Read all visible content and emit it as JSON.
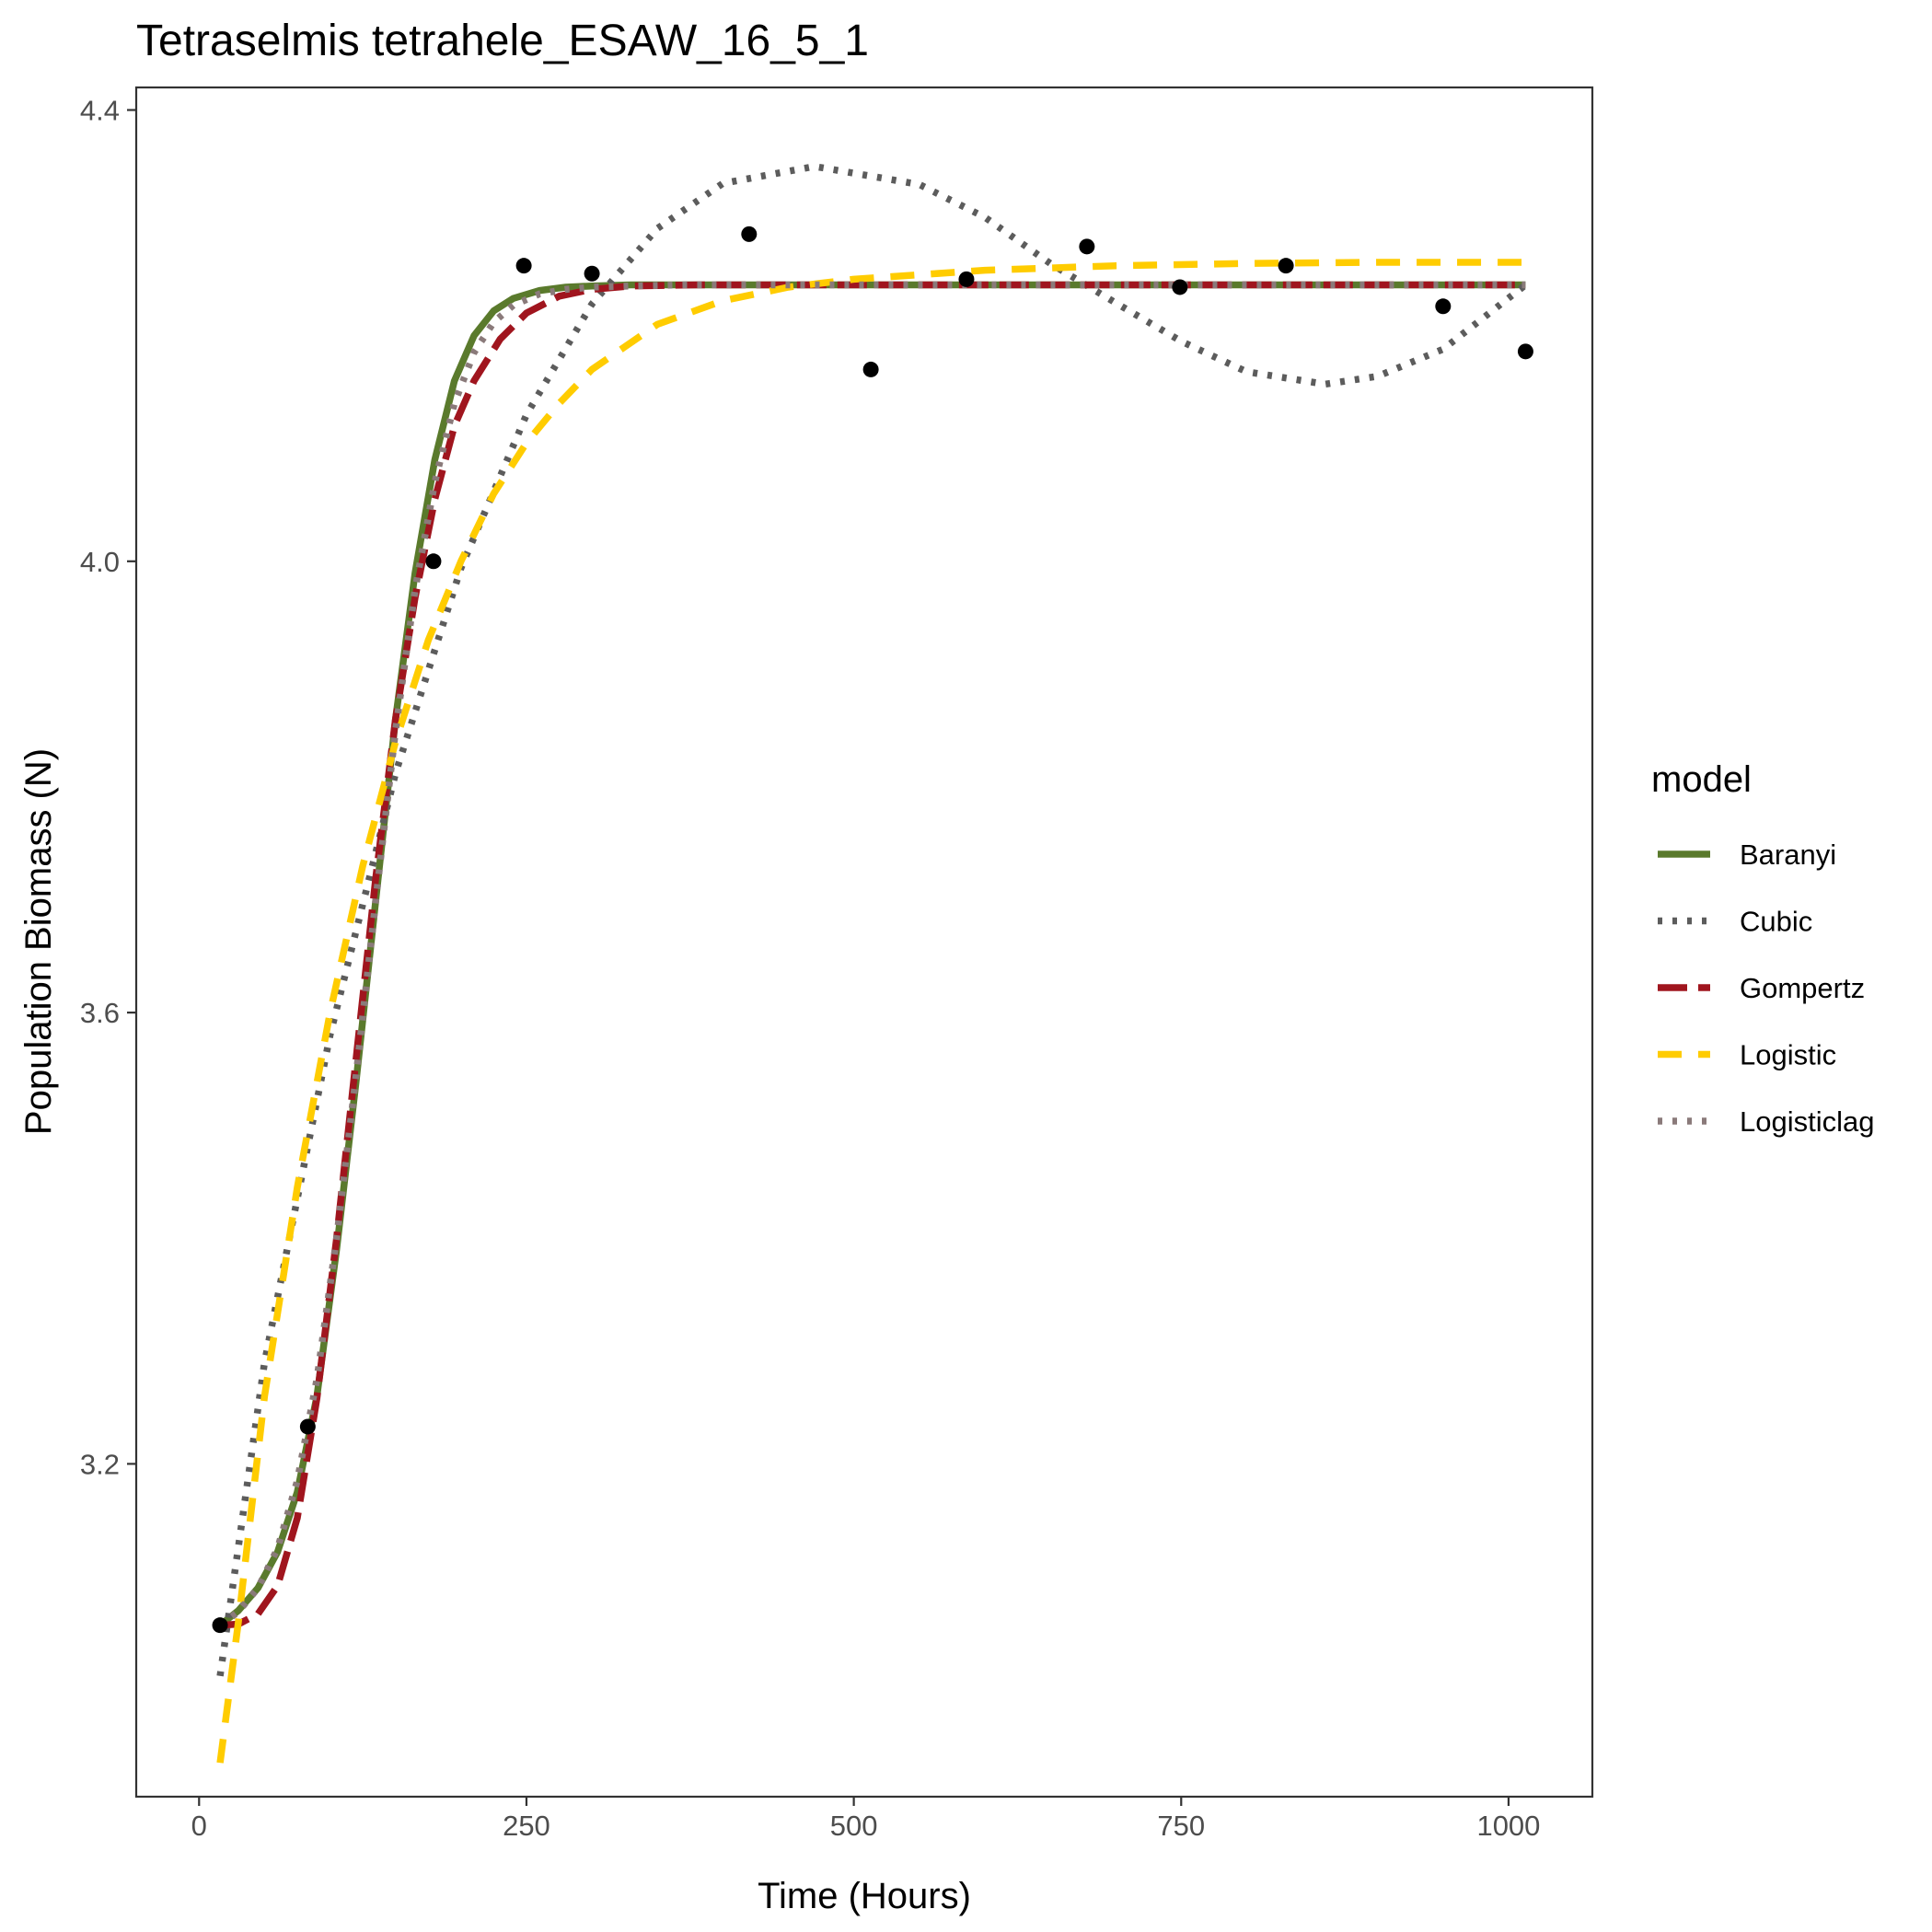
{
  "chart_data": {
    "type": "scatter",
    "title": "Tetraselmis tetrahele_ESAW_16_5_1",
    "xlabel": "Time (Hours)",
    "ylabel": "Population Biomass (N)",
    "xlim": [
      -48,
      1064
    ],
    "ylim": [
      2.905,
      4.42
    ],
    "xticks": [
      0,
      250,
      500,
      750,
      1000
    ],
    "xtick_labels": [
      "0",
      "250",
      "500",
      "750",
      "1000"
    ],
    "yticks": [
      3.2,
      3.6,
      4.0,
      4.4
    ],
    "ytick_labels": [
      "3.2",
      "3.6",
      "4.0",
      "4.4"
    ],
    "grid": false,
    "legend_title": "model",
    "legend_position": "right",
    "points": [
      {
        "x": 16,
        "y": 3.057
      },
      {
        "x": 83,
        "y": 3.233
      },
      {
        "x": 179,
        "y": 4.0
      },
      {
        "x": 248,
        "y": 4.262
      },
      {
        "x": 300,
        "y": 4.255
      },
      {
        "x": 420,
        "y": 4.29
      },
      {
        "x": 513,
        "y": 4.17
      },
      {
        "x": 586,
        "y": 4.25
      },
      {
        "x": 678,
        "y": 4.279
      },
      {
        "x": 749,
        "y": 4.243
      },
      {
        "x": 830,
        "y": 4.262
      },
      {
        "x": 950,
        "y": 4.226
      },
      {
        "x": 1013,
        "y": 4.186
      }
    ],
    "series": [
      {
        "name": "Baranyi",
        "color": "#5a7a2c",
        "style": "solid",
        "x": [
          16,
          30,
          45,
          60,
          75,
          90,
          105,
          120,
          135,
          150,
          165,
          180,
          195,
          210,
          225,
          240,
          260,
          280,
          300,
          330,
          370,
          450,
          600,
          800,
          1013
        ],
        "y": [
          3.057,
          3.07,
          3.09,
          3.122,
          3.175,
          3.26,
          3.39,
          3.54,
          3.7,
          3.86,
          3.99,
          4.09,
          4.16,
          4.2,
          4.222,
          4.233,
          4.24,
          4.243,
          4.244,
          4.245,
          4.245,
          4.245,
          4.245,
          4.245,
          4.245
        ]
      },
      {
        "name": "Cubic",
        "color": "#5c5c5c",
        "style": "dotted",
        "x": [
          16,
          50,
          100,
          150,
          200,
          250,
          300,
          350,
          400,
          470,
          550,
          600,
          650,
          700,
          750,
          800,
          860,
          900,
          950,
          1013
        ],
        "y": [
          3.012,
          3.29,
          3.58,
          3.812,
          3.994,
          4.13,
          4.228,
          4.295,
          4.335,
          4.35,
          4.334,
          4.305,
          4.264,
          4.229,
          4.195,
          4.168,
          4.157,
          4.164,
          4.188,
          4.245
        ]
      },
      {
        "name": "Gompertz",
        "color": "#a0151e",
        "style": "longdash",
        "x": [
          16,
          30,
          45,
          60,
          75,
          90,
          105,
          120,
          135,
          150,
          165,
          180,
          195,
          210,
          230,
          250,
          275,
          300,
          330,
          380,
          450,
          600,
          800,
          1013
        ],
        "y": [
          3.057,
          3.058,
          3.067,
          3.092,
          3.152,
          3.258,
          3.4,
          3.56,
          3.72,
          3.86,
          3.968,
          4.055,
          4.12,
          4.16,
          4.197,
          4.22,
          4.235,
          4.241,
          4.244,
          4.245,
          4.245,
          4.245,
          4.245,
          4.245
        ]
      },
      {
        "name": "Logistic",
        "color": "#ffcc00",
        "style": "dashed",
        "x": [
          16,
          30,
          50,
          75,
          100,
          125,
          150,
          175,
          200,
          225,
          250,
          275,
          300,
          350,
          400,
          450,
          500,
          600,
          700,
          800,
          900,
          1013
        ],
        "y": [
          2.935,
          3.06,
          3.26,
          3.445,
          3.6,
          3.73,
          3.84,
          3.93,
          4.0,
          4.06,
          4.105,
          4.14,
          4.17,
          4.21,
          4.231,
          4.243,
          4.25,
          4.258,
          4.262,
          4.264,
          4.265,
          4.265
        ]
      },
      {
        "name": "Logisticlag",
        "color": "#8a7a7a",
        "style": "dotted",
        "x": [
          16,
          30,
          45,
          60,
          75,
          90,
          105,
          120,
          135,
          150,
          165,
          180,
          195,
          210,
          225,
          240,
          260,
          280,
          300,
          330,
          370,
          450,
          600,
          800,
          1013
        ],
        "y": [
          3.057,
          3.069,
          3.09,
          3.125,
          3.185,
          3.275,
          3.4,
          3.545,
          3.7,
          3.85,
          3.975,
          4.07,
          4.14,
          4.185,
          4.212,
          4.227,
          4.237,
          4.241,
          4.243,
          4.244,
          4.245,
          4.245,
          4.245,
          4.245,
          4.245
        ]
      }
    ]
  }
}
